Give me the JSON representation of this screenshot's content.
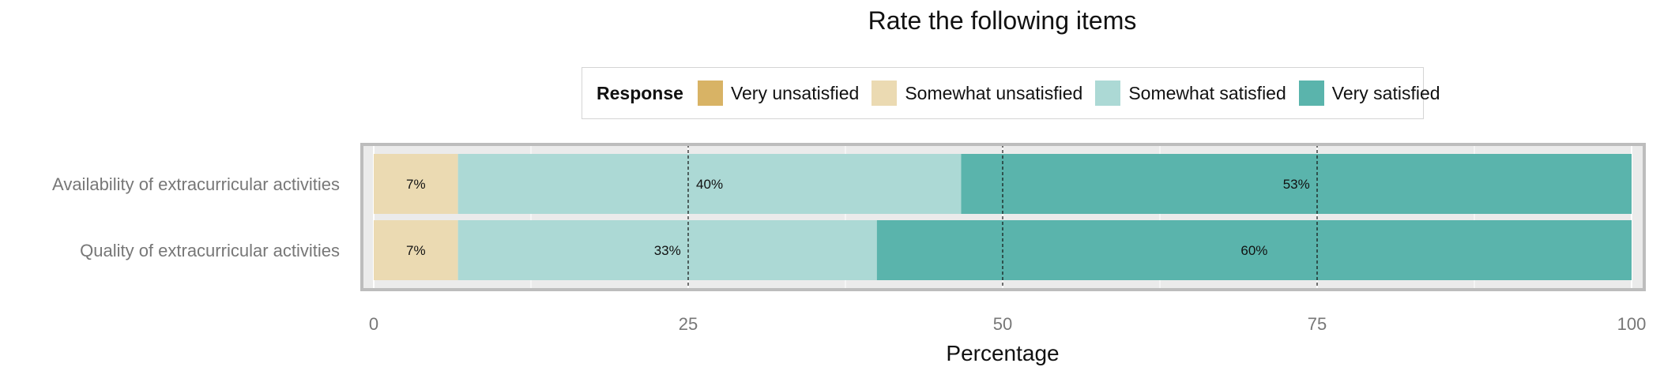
{
  "chart_data": {
    "type": "bar",
    "orientation": "horizontal",
    "stacked": true,
    "title": "Rate the following items",
    "xlabel": "Percentage",
    "ylabel": "",
    "xlim": [
      0,
      100
    ],
    "xticks": [
      0,
      25,
      50,
      75,
      100
    ],
    "grid": true,
    "reference_lines": [
      25,
      50,
      75
    ],
    "legend": {
      "title": "Response",
      "position": "top"
    },
    "categories": [
      "Availability of extracurricular activities",
      "Quality of extracurricular activities"
    ],
    "series": [
      {
        "name": "Very unsatisfied",
        "color": "#d8b365",
        "values": [
          0,
          0
        ],
        "labels": [
          "",
          ""
        ]
      },
      {
        "name": "Somewhat unsatisfied",
        "color": "#ebdab2",
        "values": [
          6.7,
          6.7
        ],
        "labels": [
          "7%",
          "7%"
        ]
      },
      {
        "name": "Somewhat satisfied",
        "color": "#acd9d5",
        "values": [
          40,
          33.3
        ],
        "labels": [
          "40%",
          "33%"
        ]
      },
      {
        "name": "Very satisfied",
        "color": "#5ab4ac",
        "values": [
          53.3,
          60
        ],
        "labels": [
          "53%",
          "60%"
        ]
      }
    ]
  }
}
